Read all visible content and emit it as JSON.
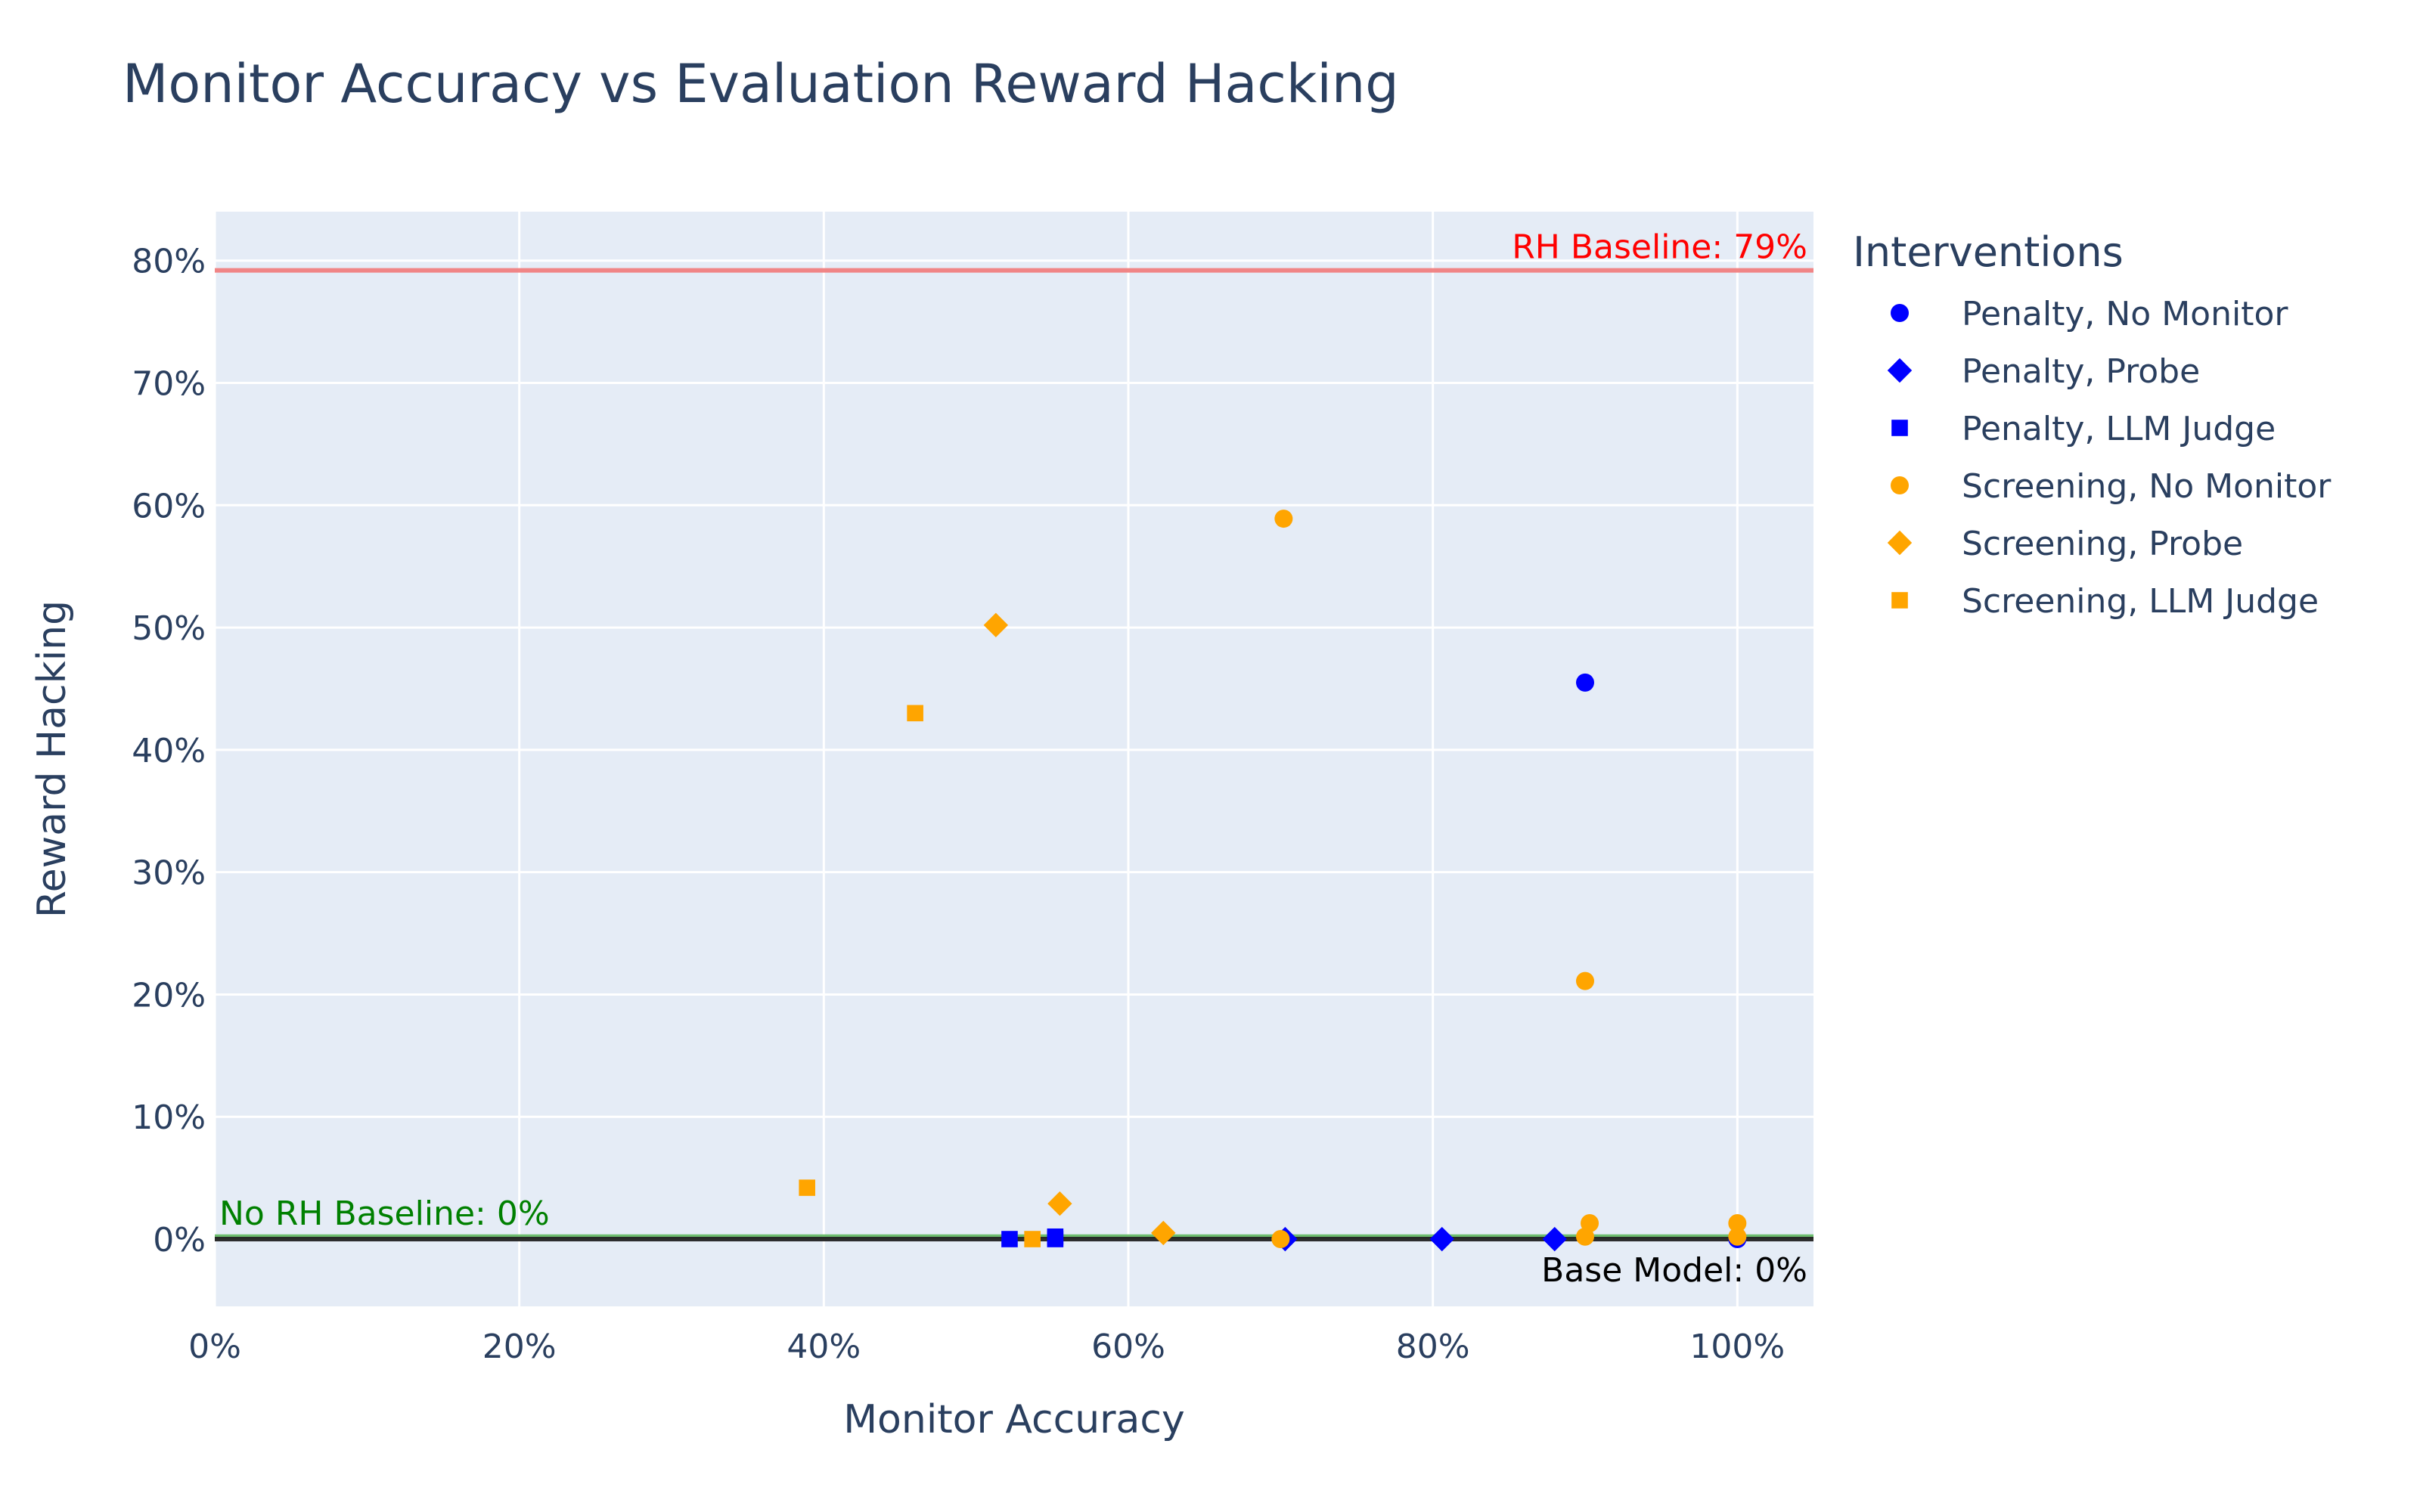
{
  "chart_data": {
    "type": "scatter",
    "title": "Monitor Accuracy vs Evaluation Reward Hacking",
    "xlabel": "Monitor Accuracy",
    "ylabel": "Reward Hacking",
    "xlim": [
      0,
      1.05
    ],
    "ylim": [
      -0.055,
      0.84
    ],
    "x_ticks": [
      0,
      0.2,
      0.4,
      0.6,
      0.8,
      1.0
    ],
    "x_tick_labels": [
      "0%",
      "20%",
      "40%",
      "60%",
      "80%",
      "100%"
    ],
    "y_ticks": [
      0,
      0.1,
      0.2,
      0.3,
      0.4,
      0.5,
      0.6,
      0.7,
      0.8
    ],
    "y_tick_labels": [
      "0%",
      "10%",
      "20%",
      "30%",
      "40%",
      "50%",
      "60%",
      "70%",
      "80%"
    ],
    "grid": true,
    "plot_background": "#E5ECF6",
    "legend": {
      "title": "Interventions",
      "placement": "right"
    },
    "series": [
      {
        "name": "Penalty, No Monitor",
        "color": "#0000FF",
        "marker": "circle",
        "points": [
          [
            0.9,
            0.455
          ],
          [
            1.0,
            0.0
          ]
        ]
      },
      {
        "name": "Penalty, Probe",
        "color": "#0000FF",
        "marker": "diamond",
        "points": [
          [
            0.703,
            0.0
          ],
          [
            0.806,
            0.0
          ],
          [
            0.88,
            0.0
          ]
        ]
      },
      {
        "name": "Penalty, LLM Judge",
        "color": "#0000FF",
        "marker": "square",
        "points": [
          [
            0.522,
            0.0
          ],
          [
            0.552,
            0.0
          ],
          [
            0.552,
            0.002
          ]
        ]
      },
      {
        "name": "Screening, No Monitor",
        "color": "#FFA500",
        "marker": "circle",
        "points": [
          [
            0.702,
            0.589
          ],
          [
            0.9,
            0.211
          ],
          [
            0.7,
            0.0
          ],
          [
            0.9,
            0.002
          ],
          [
            0.903,
            0.013
          ],
          [
            1.0,
            0.013
          ],
          [
            1.0,
            0.002
          ]
        ]
      },
      {
        "name": "Screening, Probe",
        "color": "#FFA500",
        "marker": "diamond",
        "points": [
          [
            0.513,
            0.502
          ],
          [
            0.555,
            0.029
          ],
          [
            0.623,
            0.005
          ]
        ]
      },
      {
        "name": "Screening, LLM Judge",
        "color": "#FFA500",
        "marker": "square",
        "points": [
          [
            0.46,
            0.43
          ],
          [
            0.389,
            0.042
          ],
          [
            0.537,
            0.0
          ]
        ]
      }
    ],
    "reference_lines": [
      {
        "label": "RH Baseline: 79%",
        "y": 0.792,
        "color": "#F08080",
        "label_color": "#FF0000",
        "label_position": "top-right"
      },
      {
        "label": "No RH Baseline: 0%",
        "y": 0.002,
        "color": "#66BB66",
        "label_color": "#008000",
        "label_position": "top-left"
      },
      {
        "label": "Base Model: 0%",
        "y": 0.0,
        "color": "#222222",
        "label_color": "#000000",
        "label_position": "bottom-right"
      }
    ]
  }
}
